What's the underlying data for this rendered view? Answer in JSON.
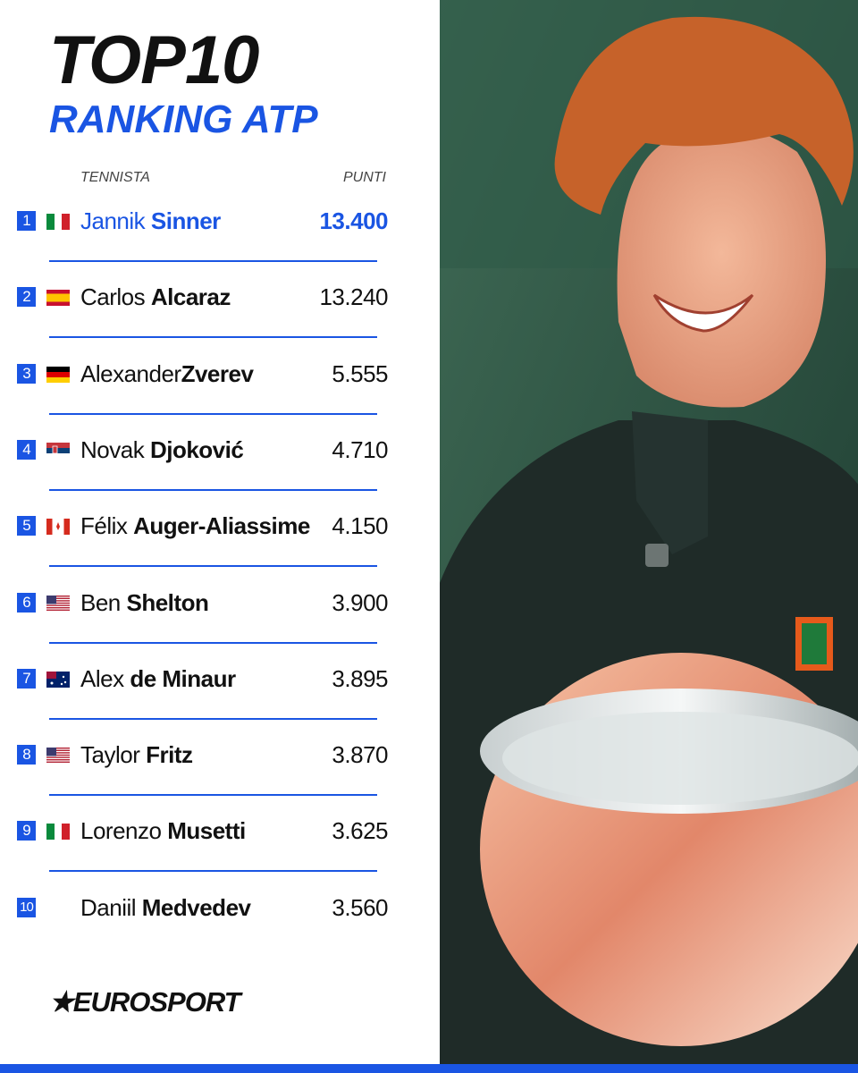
{
  "header": {
    "title": "TOP10",
    "subtitle": "RANKING ATP"
  },
  "table": {
    "columns": [
      "TENNISTA",
      "PUNTI"
    ],
    "rows": [
      {
        "rank": "1",
        "first": "Jannik",
        "last": "Sinner",
        "points": "13.400"
      },
      {
        "rank": "2",
        "first": "Carlos",
        "last": "Alcaraz",
        "points": "13.240"
      },
      {
        "rank": "3",
        "first": "Alexander",
        "last": "Zverev",
        "points": "5.555"
      },
      {
        "rank": "4",
        "first": "Novak",
        "last": "Djoković",
        "points": "4.710"
      },
      {
        "rank": "5",
        "first": "Félix",
        "last": "Auger-Aliassime",
        "points": "4.150"
      },
      {
        "rank": "6",
        "first": "Ben",
        "last": "Shelton",
        "points": "3.900"
      },
      {
        "rank": "7",
        "first": "Alex",
        "last": "de Minaur",
        "points": "3.895"
      },
      {
        "rank": "8",
        "first": "Taylor",
        "last": "Fritz",
        "points": "3.870"
      },
      {
        "rank": "9",
        "first": "Lorenzo",
        "last": "Musetti",
        "points": "3.625"
      },
      {
        "rank": "10",
        "first": "Daniil",
        "last": "Medvedev",
        "points": "3.560"
      }
    ]
  },
  "footer": {
    "logo": "EUROSPORT"
  }
}
